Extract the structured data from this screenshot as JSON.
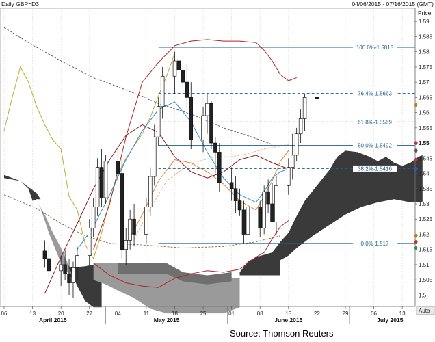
{
  "header": {
    "title": "Daily GBP=D3",
    "range": "04/06/2015 - 07/16/2015 (GMT)"
  },
  "price_label": "Price",
  "auto_label": "Auto",
  "source": "Source: Thomson Reuters",
  "colors": {
    "background": "#ffffff",
    "fib": "#1d5f8a",
    "upper_band": "#b22222",
    "lower_band": "#b22222",
    "cloud_dark": "#3a3a3a",
    "cloud_light": "#9a9a9a",
    "tenkan": "#2a8fd6",
    "kijun": "#8b1a1a",
    "chikou": "#b8a41e",
    "ma_dash": "#555555",
    "orange": "#e07a2a"
  },
  "chart_data": {
    "type": "candlestick",
    "symbol": "GBP=D3",
    "period": "Daily",
    "ylim": [
      1.495,
      1.593
    ],
    "y_ticks": [
      "1.59",
      "1.585",
      "1.58",
      "1.575",
      "1.57",
      "1.565",
      "1.56",
      "1.555",
      "1.55",
      "1.545",
      "1.54",
      "1.535",
      "1.53",
      "1.525",
      "1.52",
      "1.515",
      "1.51",
      "1.505",
      "1.5"
    ],
    "x_ticks": [
      "06",
      "13",
      "20",
      "27",
      "04",
      "11",
      "18",
      "25",
      "01",
      "08",
      "15",
      "22",
      "29",
      "06",
      "13"
    ],
    "months": [
      "April 2015",
      "May 2015",
      "June 2015",
      "July 2015"
    ],
    "fibonacci": [
      {
        "label": "100.0%-1.5815",
        "level": "100.0%",
        "value": 1.5815
      },
      {
        "label": "76.4%-1.5663",
        "level": "76.4%",
        "value": 1.5663
      },
      {
        "label": "61.8%-1.5569",
        "level": "61.8%",
        "value": 1.5569
      },
      {
        "label": "50.0%-1.5492",
        "level": "50.0%",
        "value": 1.5492
      },
      {
        "label": "38.2%-1.5416",
        "level": "38.2%",
        "value": 1.5416
      },
      {
        "label": "0.0%-1.517",
        "level": "0.0%",
        "value": 1.517
      }
    ],
    "candles": [
      [
        1.5145,
        1.518,
        1.509,
        1.512
      ],
      [
        1.512,
        1.516,
        1.506,
        1.508
      ],
      [
        1.508,
        1.513,
        1.503,
        1.51
      ],
      [
        1.51,
        1.515,
        1.505,
        1.507
      ],
      [
        1.507,
        1.512,
        1.5,
        1.504
      ],
      [
        1.504,
        1.511,
        1.499,
        1.509
      ],
      [
        1.509,
        1.516,
        1.505,
        1.513
      ],
      [
        1.513,
        1.525,
        1.51,
        1.522
      ],
      [
        1.522,
        1.532,
        1.519,
        1.529
      ],
      [
        1.529,
        1.545,
        1.526,
        1.542
      ],
      [
        1.542,
        1.548,
        1.529,
        1.532
      ],
      [
        1.532,
        1.546,
        1.53,
        1.544
      ],
      [
        1.544,
        1.549,
        1.537,
        1.54
      ],
      [
        1.54,
        1.545,
        1.512,
        1.515
      ],
      [
        1.515,
        1.522,
        1.51,
        1.518
      ],
      [
        1.518,
        1.528,
        1.515,
        1.525
      ],
      [
        1.525,
        1.53,
        1.516,
        1.52
      ],
      [
        1.52,
        1.532,
        1.517,
        1.529
      ],
      [
        1.529,
        1.542,
        1.526,
        1.539
      ],
      [
        1.539,
        1.556,
        1.536,
        1.552
      ],
      [
        1.552,
        1.565,
        1.549,
        1.562
      ],
      [
        1.562,
        1.575,
        1.558,
        1.572
      ],
      [
        1.572,
        1.58,
        1.566,
        1.577
      ],
      [
        1.577,
        1.5815,
        1.57,
        1.574
      ],
      [
        1.574,
        1.579,
        1.567,
        1.57
      ],
      [
        1.57,
        1.576,
        1.561,
        1.565
      ],
      [
        1.565,
        1.57,
        1.548,
        1.551
      ],
      [
        1.551,
        1.562,
        1.547,
        1.559
      ],
      [
        1.559,
        1.566,
        1.553,
        1.563
      ],
      [
        1.563,
        1.564,
        1.548,
        1.55
      ],
      [
        1.55,
        1.552,
        1.54,
        1.547
      ],
      [
        1.547,
        1.55,
        1.534,
        1.537
      ],
      [
        1.537,
        1.542,
        1.531,
        1.535
      ],
      [
        1.535,
        1.539,
        1.527,
        1.531
      ],
      [
        1.531,
        1.535,
        1.526,
        1.528
      ],
      [
        1.528,
        1.531,
        1.517,
        1.52
      ],
      [
        1.52,
        1.532,
        1.518,
        1.529
      ],
      [
        1.529,
        1.531,
        1.519,
        1.522
      ],
      [
        1.522,
        1.536,
        1.52,
        1.534
      ],
      [
        1.534,
        1.538,
        1.527,
        1.53
      ],
      [
        1.53,
        1.537,
        1.524,
        1.524
      ],
      [
        1.524,
        1.539,
        1.52,
        1.536
      ],
      [
        1.536,
        1.545,
        1.533,
        1.542
      ],
      [
        1.542,
        1.553,
        1.538,
        1.546
      ],
      [
        1.546,
        1.555,
        1.544,
        1.553
      ],
      [
        1.553,
        1.561,
        1.55,
        1.558
      ],
      [
        1.558,
        1.566,
        1.554,
        1.565
      ],
      [
        1.565,
        1.5665,
        1.5625,
        1.5645
      ]
    ]
  }
}
